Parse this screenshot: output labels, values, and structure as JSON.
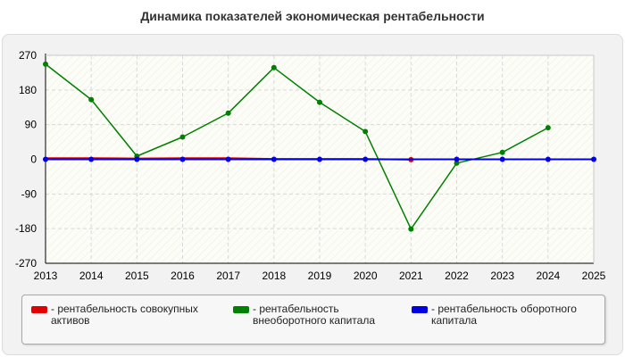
{
  "title": "Динамика показателей экономическая рентабельности",
  "colors": {
    "card_background": "#f2f2f2",
    "plot_background": "#fdfdf7",
    "grid": "#d8d8d8"
  },
  "chart_data": {
    "type": "line",
    "title": "Динамика показателей экономическая рентабельности",
    "xlabel": "",
    "ylabel": "",
    "x": [
      2013,
      2014,
      2015,
      2016,
      2017,
      2018,
      2019,
      2020,
      2021,
      2022,
      2023,
      2024,
      2025
    ],
    "xlim": [
      2013,
      2025
    ],
    "ylim": [
      -270,
      270
    ],
    "yticks": [
      270,
      180,
      90,
      0,
      -90,
      -180,
      -270
    ],
    "grid": true,
    "legend_position": "bottom",
    "series": [
      {
        "name": "- рентабельность совокупных активов",
        "label_lines": [
          "- рентабельность совокупных",
          "активов"
        ],
        "color": "#e00000",
        "x": [
          2013,
          2014,
          2015,
          2016,
          2017,
          2018,
          2019,
          2020,
          2021
        ],
        "values": [
          3,
          3,
          2,
          3,
          3,
          1,
          1,
          1,
          -1
        ],
        "markers": [
          false,
          false,
          false,
          false,
          false,
          false,
          false,
          false,
          true
        ]
      },
      {
        "name": "- рентабельность внеоборотного капитала",
        "label_lines": [
          "- рентабельность",
          "внеоборотного капитала"
        ],
        "color": "#008000",
        "x": [
          2013,
          2014,
          2015,
          2016,
          2017,
          2018,
          2019,
          2020,
          2021,
          2022,
          2023,
          2024
        ],
        "values": [
          247,
          155,
          8,
          58,
          120,
          238,
          148,
          72,
          -181,
          -10,
          18,
          82
        ],
        "markers": [
          true,
          true,
          true,
          true,
          true,
          true,
          true,
          true,
          true,
          true,
          true,
          true
        ]
      },
      {
        "name": "- рентабельность оборотного капитала",
        "label_lines": [
          "- рентабельность оборотного",
          "капитала"
        ],
        "color": "#0000e0",
        "x": [
          2013,
          2014,
          2015,
          2016,
          2017,
          2018,
          2019,
          2020,
          2021,
          2022,
          2023,
          2024,
          2025
        ],
        "values": [
          0,
          0,
          0,
          0,
          0,
          0,
          0,
          0,
          0,
          0,
          0,
          0,
          0
        ],
        "markers": [
          true,
          true,
          true,
          true,
          true,
          true,
          true,
          true,
          false,
          true,
          true,
          true,
          true
        ]
      }
    ]
  }
}
